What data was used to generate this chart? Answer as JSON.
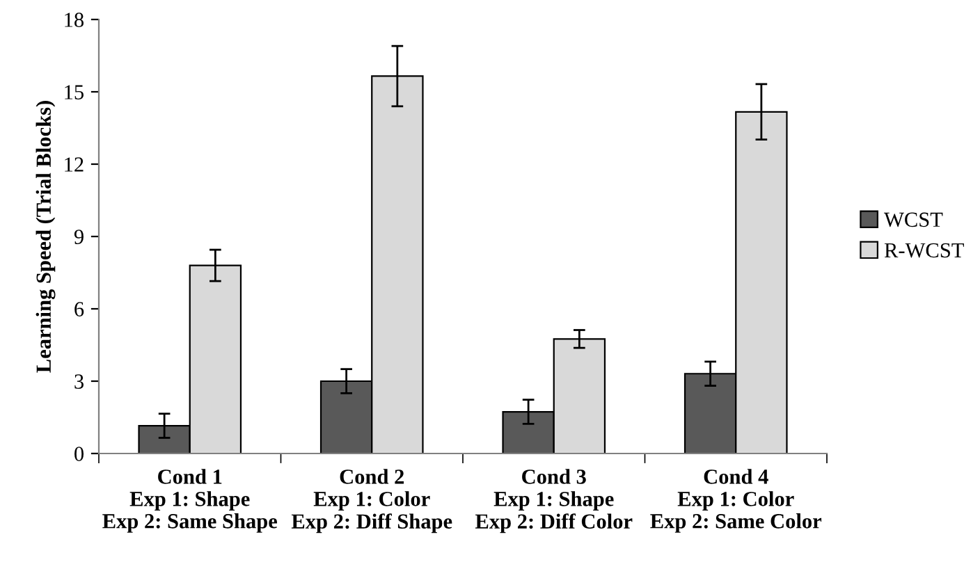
{
  "chart_data": {
    "type": "bar",
    "ylabel": "Learning Speed (Trial Blocks)",
    "categories": [
      "Cond 1\nExp 1: Shape\nExp 2: Same Shape",
      "Cond 2\nExp 1: Color\nExp 2: Diff Shape",
      "Cond 3\nExp 1: Shape\nExp 2: Diff Color",
      "Cond 4\nExp 1: Color\nExp 2: Same Color"
    ],
    "series": [
      {
        "name": "WCST",
        "color": "#595959",
        "values": [
          1.15,
          3.0,
          1.73,
          3.31
        ],
        "errors": [
          0.5,
          0.5,
          0.5,
          0.5
        ]
      },
      {
        "name": "R-WCST",
        "color": "#d9d9d9",
        "values": [
          7.8,
          15.65,
          4.75,
          14.17
        ],
        "errors": [
          0.65,
          1.25,
          0.37,
          1.15
        ]
      }
    ],
    "ylim": [
      0,
      18
    ],
    "yticks": [
      0,
      3,
      6,
      9,
      12,
      15,
      18
    ],
    "grid": false,
    "legend": "right"
  }
}
